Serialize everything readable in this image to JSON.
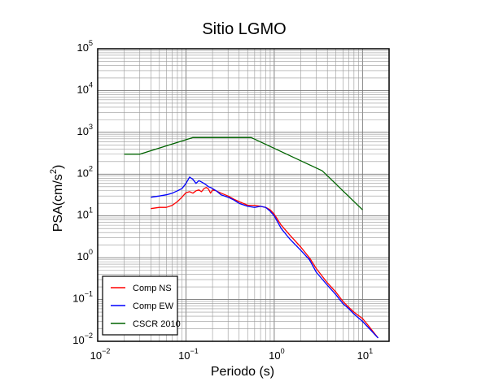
{
  "chart_data": {
    "type": "line",
    "title": "Sitio LGMO",
    "xlabel": "Periodo (s)",
    "ylabel": "PSA(cm/s",
    "ylabel_sup": "2",
    "ylabel_close": ")",
    "xscale": "log",
    "yscale": "log",
    "xlim": [
      0.01,
      20
    ],
    "ylim": [
      0.01,
      100000
    ],
    "grid": true,
    "legend_position": "bottom-left",
    "x_tick_labels": [
      {
        "base": "10",
        "exp": "−2"
      },
      {
        "base": "10",
        "exp": "−1"
      },
      {
        "base": "10",
        "exp": "0"
      },
      {
        "base": "10",
        "exp": "1"
      }
    ],
    "y_tick_labels": [
      {
        "base": "10",
        "exp": "−2"
      },
      {
        "base": "10",
        "exp": "−1"
      },
      {
        "base": "10",
        "exp": "0"
      },
      {
        "base": "10",
        "exp": "1"
      },
      {
        "base": "10",
        "exp": "2"
      },
      {
        "base": "10",
        "exp": "3"
      },
      {
        "base": "10",
        "exp": "4"
      },
      {
        "base": "10",
        "exp": "5"
      }
    ],
    "series": [
      {
        "name": "Comp NS",
        "color": "#ff0000",
        "x": [
          0.04,
          0.05,
          0.06,
          0.07,
          0.08,
          0.09,
          0.1,
          0.11,
          0.12,
          0.13,
          0.14,
          0.15,
          0.16,
          0.17,
          0.18,
          0.19,
          0.2,
          0.22,
          0.25,
          0.3,
          0.35,
          0.4,
          0.5,
          0.6,
          0.7,
          0.8,
          0.9,
          1.0,
          1.2,
          1.5,
          2.0,
          2.5,
          3.0,
          4.0,
          5.0,
          6.0,
          7.0,
          8.0,
          10.0,
          12.0,
          15.0
        ],
        "y": [
          15,
          16,
          16,
          18,
          22,
          28,
          36,
          38,
          35,
          40,
          42,
          38,
          45,
          48,
          44,
          35,
          42,
          40,
          35,
          30,
          25,
          22,
          18,
          18,
          17,
          16,
          14,
          11,
          6,
          3.5,
          1.8,
          1.0,
          0.55,
          0.25,
          0.15,
          0.09,
          0.065,
          0.05,
          0.035,
          0.022,
          0.012
        ]
      },
      {
        "name": "Comp EW",
        "color": "#0000ff",
        "x": [
          0.04,
          0.05,
          0.06,
          0.07,
          0.08,
          0.09,
          0.1,
          0.11,
          0.12,
          0.13,
          0.14,
          0.15,
          0.16,
          0.17,
          0.18,
          0.19,
          0.2,
          0.22,
          0.25,
          0.3,
          0.35,
          0.4,
          0.5,
          0.6,
          0.7,
          0.8,
          0.9,
          1.0,
          1.2,
          1.5,
          2.0,
          2.5,
          3.0,
          4.0,
          5.0,
          6.0,
          7.0,
          8.0,
          10.0,
          12.0,
          15.0
        ],
        "y": [
          28,
          30,
          32,
          35,
          40,
          45,
          60,
          85,
          75,
          60,
          70,
          65,
          60,
          55,
          50,
          48,
          45,
          40,
          32,
          28,
          24,
          20,
          17,
          16,
          17,
          16,
          13,
          10,
          5,
          2.8,
          1.5,
          0.9,
          0.45,
          0.22,
          0.13,
          0.08,
          0.06,
          0.045,
          0.03,
          0.02,
          0.012
        ]
      },
      {
        "name": "CSCR 2010",
        "color": "#006400",
        "x": [
          0.02,
          0.03,
          0.12,
          0.55,
          3.5,
          10.0
        ],
        "y": [
          300,
          300,
          750,
          750,
          120,
          14
        ]
      }
    ]
  }
}
